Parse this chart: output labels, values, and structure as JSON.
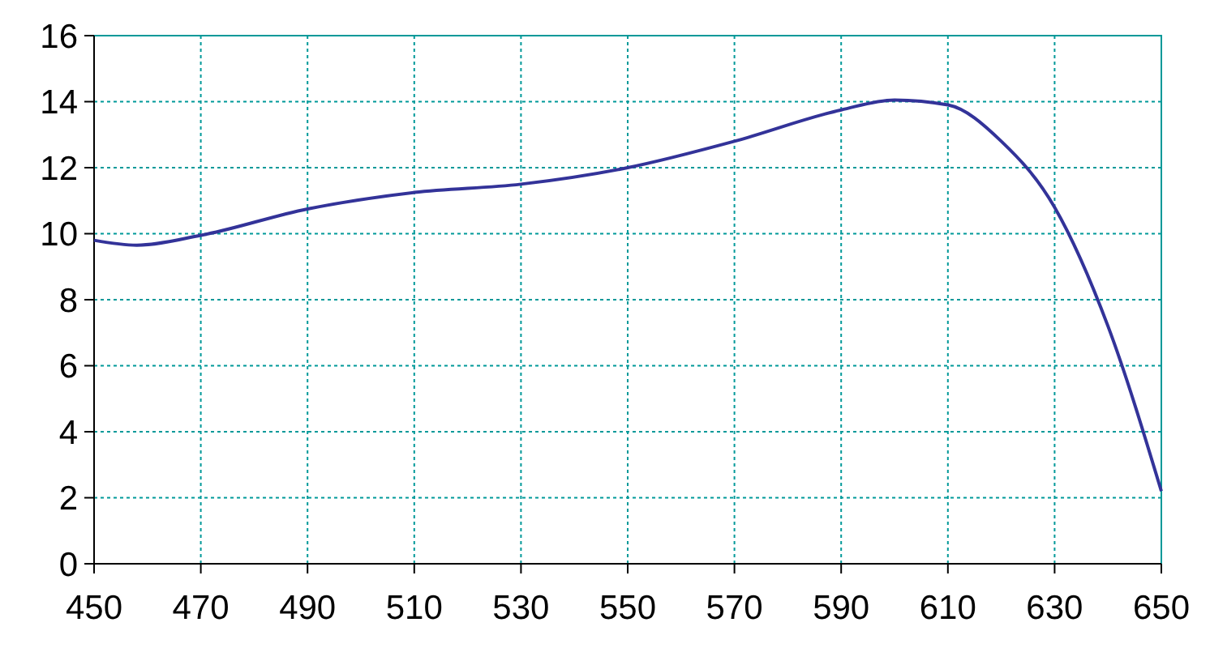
{
  "chart_data": {
    "type": "line",
    "x": [
      450,
      458,
      470,
      490,
      510,
      530,
      550,
      570,
      590,
      600,
      610,
      620,
      630,
      640,
      650
    ],
    "series": [
      {
        "color": "#333399",
        "values": [
          9.8,
          9.65,
          9.95,
          10.75,
          11.25,
          11.5,
          12.0,
          12.8,
          13.75,
          14.05,
          13.9,
          12.8,
          10.8,
          7.2,
          2.2
        ]
      }
    ],
    "xlim": [
      450,
      650
    ],
    "xticks": [
      450,
      470,
      490,
      510,
      530,
      550,
      570,
      590,
      610,
      630,
      650
    ],
    "ylim": [
      0,
      16
    ],
    "yticks": [
      0,
      2,
      4,
      6,
      8,
      10,
      12,
      14,
      16
    ],
    "grid": true,
    "marker": "none",
    "line_style": "solid"
  }
}
